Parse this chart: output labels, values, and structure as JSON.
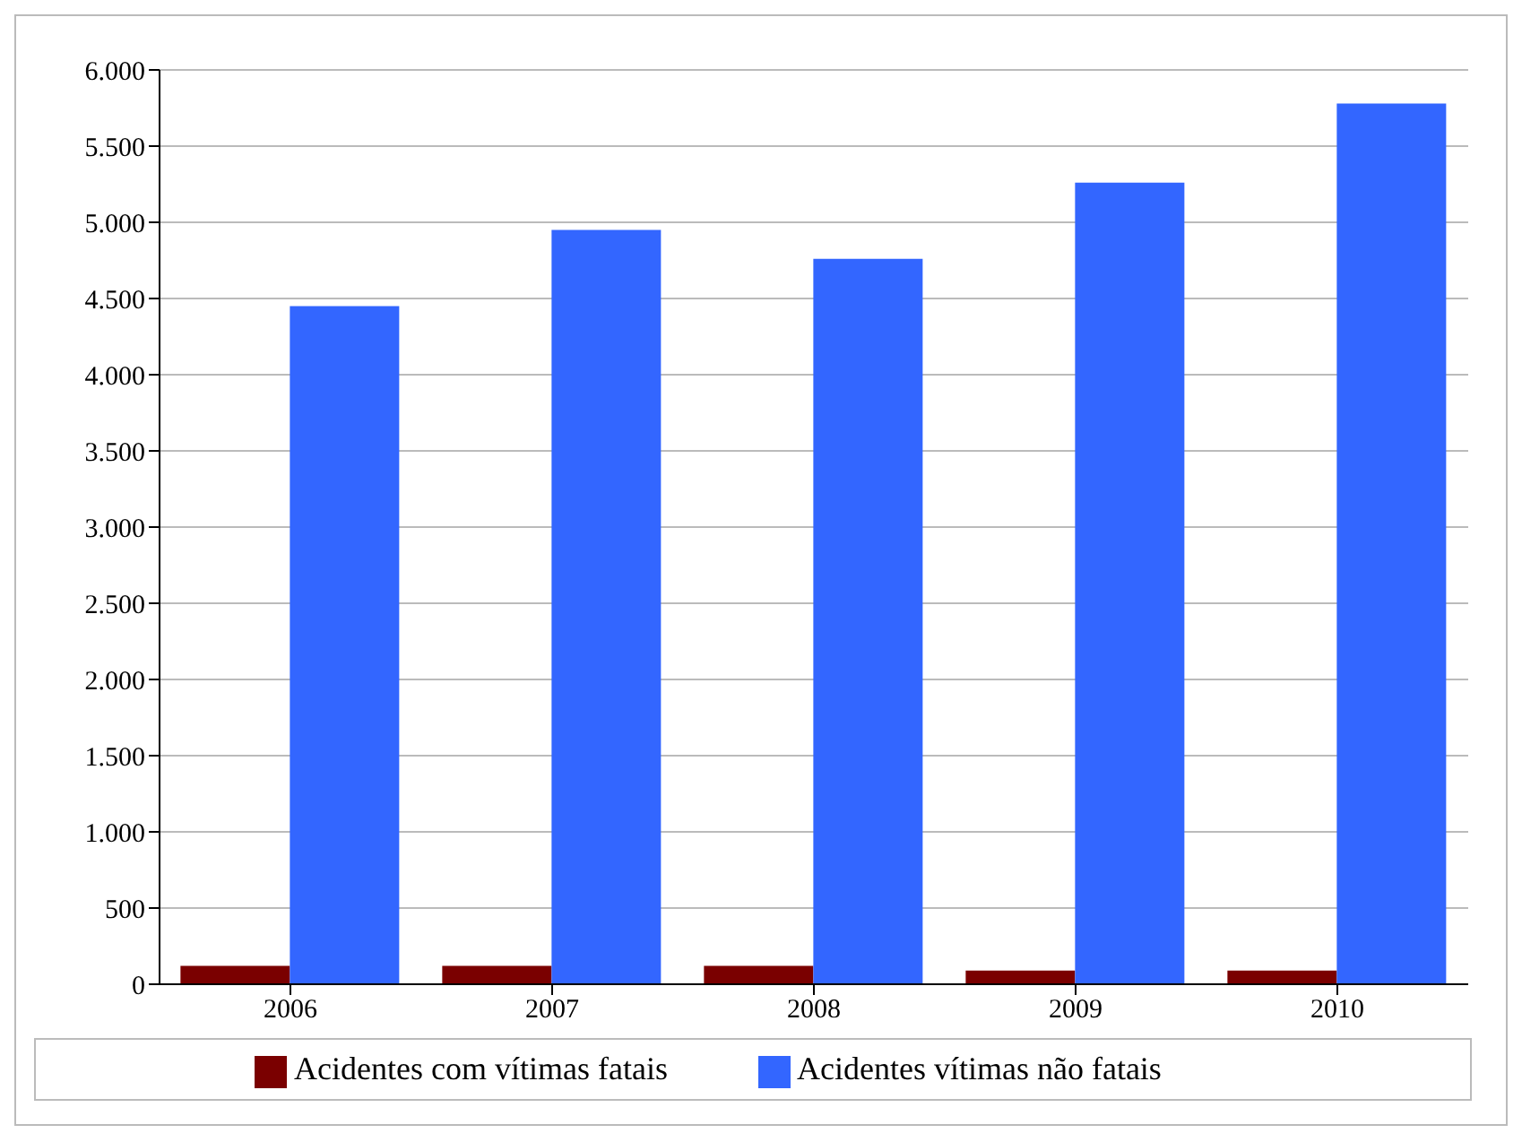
{
  "chart_data": {
    "type": "bar",
    "categories": [
      "2006",
      "2007",
      "2008",
      "2009",
      "2010"
    ],
    "series": [
      {
        "name": "Acidentes com vítimas fatais",
        "color": "#7a0000",
        "values": [
          120,
          120,
          120,
          90,
          90
        ]
      },
      {
        "name": "Acidentes vítimas não fatais",
        "color": "#3366ff",
        "values": [
          4450,
          4950,
          4760,
          5260,
          5780
        ]
      }
    ],
    "ylim": [
      0,
      6000
    ],
    "yticks": [
      0,
      500,
      {
        "value": 1000,
        "label": "1.000"
      },
      {
        "value": 1500,
        "label": "1.500"
      },
      {
        "value": 2000,
        "label": "2.000"
      },
      {
        "value": 2500,
        "label": "2.500"
      },
      {
        "value": 3000,
        "label": "3.000"
      },
      {
        "value": 3500,
        "label": "3.500"
      },
      {
        "value": 4000,
        "label": "4.000"
      },
      {
        "value": 4500,
        "label": "4.500"
      },
      {
        "value": 5000,
        "label": "5.000"
      },
      {
        "value": 5500,
        "label": "5.500"
      },
      {
        "value": 6000,
        "label": "6.000"
      }
    ],
    "grid": "y",
    "legend": "bottom"
  }
}
